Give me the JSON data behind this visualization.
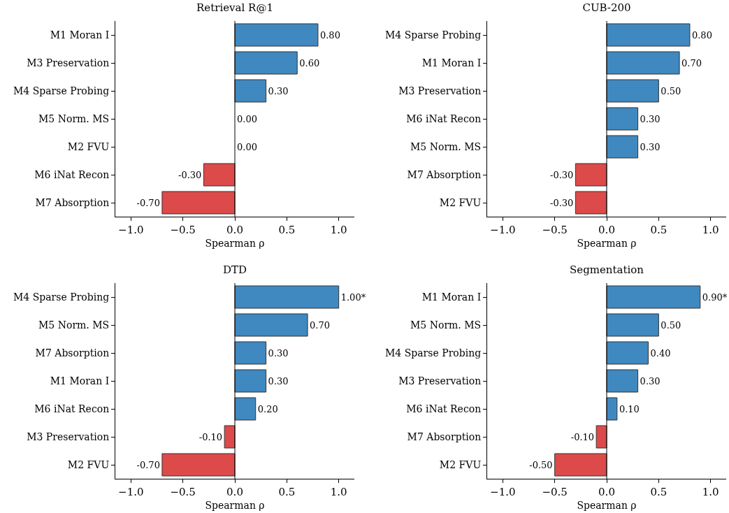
{
  "chart_data": [
    {
      "type": "bar",
      "orientation": "horizontal",
      "title": "Retrieval R@1",
      "xlabel": "Spearman ρ",
      "categories": [
        "M1 Moran I",
        "M3 Preservation",
        "M4 Sparse Probing",
        "M5 Norm. MS",
        "M2 FVU",
        "M6 iNat Recon",
        "M7 Absorption"
      ],
      "values": [
        0.8,
        0.6,
        0.3,
        0,
        0,
        -0.3,
        -0.7
      ],
      "value_labels": [
        "0.80",
        "0.60",
        "0.30",
        "0.00",
        "0.00",
        "-0.30",
        "-0.70"
      ],
      "colors": [
        "#3f88c0",
        "#3f88c0",
        "#3f88c0",
        "#3f88c0",
        "#3f88c0",
        "#dc4a4a",
        "#dc4a4a"
      ],
      "xlim": [
        -1.15,
        1.15
      ],
      "xticks": [
        {
          "value": -1,
          "label": "−1.0"
        },
        {
          "value": -0.5,
          "label": "−0.5"
        },
        {
          "value": 0,
          "label": "0.0"
        },
        {
          "value": 0.5,
          "label": "0.5"
        },
        {
          "value": 1,
          "label": "1.0"
        }
      ],
      "grid": false,
      "ref_lines": [
        {
          "axis": "x",
          "value": 0,
          "color": "#000000"
        }
      ]
    },
    {
      "type": "bar",
      "orientation": "horizontal",
      "title": "CUB-200",
      "xlabel": "Spearman ρ",
      "categories": [
        "M4 Sparse Probing",
        "M1 Moran I",
        "M3 Preservation",
        "M6 iNat Recon",
        "M5 Norm. MS",
        "M7 Absorption",
        "M2 FVU"
      ],
      "values": [
        0.8,
        0.7,
        0.5,
        0.3,
        0.3,
        -0.3,
        -0.3
      ],
      "value_labels": [
        "0.80",
        "0.70",
        "0.50",
        "0.30",
        "0.30",
        "-0.30",
        "-0.30"
      ],
      "colors": [
        "#3f88c0",
        "#3f88c0",
        "#3f88c0",
        "#3f88c0",
        "#3f88c0",
        "#dc4a4a",
        "#dc4a4a"
      ],
      "xlim": [
        -1.15,
        1.15
      ],
      "xticks": [
        {
          "value": -1,
          "label": "−1.0"
        },
        {
          "value": -0.5,
          "label": "−0.5"
        },
        {
          "value": 0,
          "label": "0.0"
        },
        {
          "value": 0.5,
          "label": "0.5"
        },
        {
          "value": 1,
          "label": "1.0"
        }
      ],
      "grid": false,
      "ref_lines": [
        {
          "axis": "x",
          "value": 0,
          "color": "#000000"
        }
      ]
    },
    {
      "type": "bar",
      "orientation": "horizontal",
      "title": "DTD",
      "xlabel": "Spearman ρ",
      "categories": [
        "M4 Sparse Probing",
        "M5 Norm. MS",
        "M7 Absorption",
        "M1 Moran I",
        "M6 iNat Recon",
        "M3 Preservation",
        "M2 FVU"
      ],
      "values": [
        1.0,
        0.7,
        0.3,
        0.3,
        0.2,
        -0.1,
        -0.7
      ],
      "value_labels": [
        "1.00*",
        "0.70",
        "0.30",
        "0.30",
        "0.20",
        "-0.10",
        "-0.70"
      ],
      "colors": [
        "#3f88c0",
        "#3f88c0",
        "#3f88c0",
        "#3f88c0",
        "#3f88c0",
        "#dc4a4a",
        "#dc4a4a"
      ],
      "xlim": [
        -1.15,
        1.15
      ],
      "xticks": [
        {
          "value": -1,
          "label": "−1.0"
        },
        {
          "value": -0.5,
          "label": "−0.5"
        },
        {
          "value": 0,
          "label": "0.0"
        },
        {
          "value": 0.5,
          "label": "0.5"
        },
        {
          "value": 1,
          "label": "1.0"
        }
      ],
      "grid": false,
      "ref_lines": [
        {
          "axis": "x",
          "value": 0,
          "color": "#000000"
        }
      ]
    },
    {
      "type": "bar",
      "orientation": "horizontal",
      "title": "Segmentation",
      "xlabel": "Spearman ρ",
      "categories": [
        "M1 Moran I",
        "M5 Norm. MS",
        "M4 Sparse Probing",
        "M3 Preservation",
        "M6 iNat Recon",
        "M7 Absorption",
        "M2 FVU"
      ],
      "values": [
        0.9,
        0.5,
        0.4,
        0.3,
        0.1,
        -0.1,
        -0.5
      ],
      "value_labels": [
        "0.90*",
        "0.50",
        "0.40",
        "0.30",
        "0.10",
        "-0.10",
        "-0.50"
      ],
      "colors": [
        "#3f88c0",
        "#3f88c0",
        "#3f88c0",
        "#3f88c0",
        "#3f88c0",
        "#dc4a4a",
        "#dc4a4a"
      ],
      "xlim": [
        -1.15,
        1.15
      ],
      "xticks": [
        {
          "value": -1,
          "label": "−1.0"
        },
        {
          "value": -0.5,
          "label": "−0.5"
        },
        {
          "value": 0,
          "label": "0.0"
        },
        {
          "value": 0.5,
          "label": "0.5"
        },
        {
          "value": 1,
          "label": "1.0"
        }
      ],
      "grid": false,
      "ref_lines": [
        {
          "axis": "x",
          "value": 0,
          "color": "#000000"
        }
      ]
    }
  ]
}
